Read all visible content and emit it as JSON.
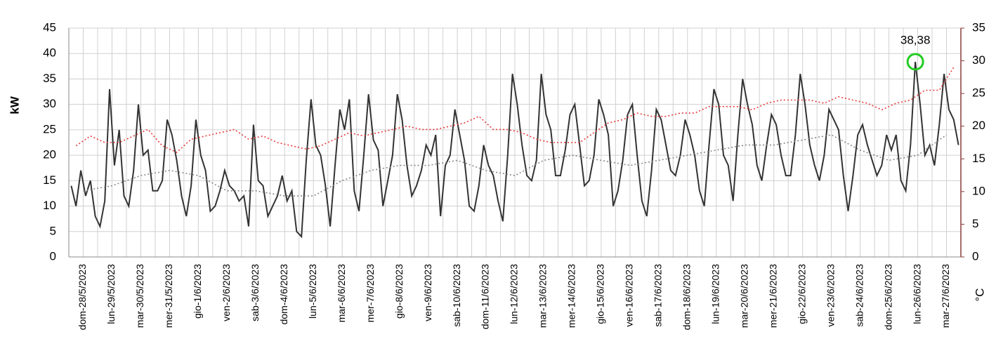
{
  "chart_data": {
    "type": "line",
    "y_label": "kW",
    "y2_label": "°C",
    "y2_color": "#8b3a3a",
    "categories": [
      "dom-28/5/2023",
      "lun-29/5/2023",
      "mar-30/5/2023",
      "mer-31/5/2023",
      "gio-1/6/2023",
      "ven-2/6/2023",
      "sab-3/6/2023",
      "dom-4/6/2023",
      "lun-5/6/2023",
      "mar-6/6/2023",
      "mer-7/6/2023",
      "gio-8/6/2023",
      "ven-9/6/2023",
      "sab-10/6/2023",
      "dom-11/6/2023",
      "lun-12/6/2023",
      "mar-13/6/2023",
      "mer-14/6/2023",
      "gio-15/6/2023",
      "ven-16/6/2023",
      "sab-17/6/2023",
      "dom-18/6/2023",
      "lun-19/6/2023",
      "mar-20/6/2023",
      "mer-21/6/2023",
      "gio-22/6/2023",
      "ven-23/6/2023",
      "sab-24/6/2023",
      "dom-25/6/2023",
      "lun-26/6/2023",
      "mar-27/6/2023"
    ],
    "series": [
      {
        "color": "#333333",
        "dash": "solid",
        "axis": "y",
        "values": [
          [
            14,
            10,
            17,
            12,
            15,
            8
          ],
          [
            6,
            11,
            33,
            18,
            25,
            12
          ],
          [
            10,
            17,
            30,
            20,
            21,
            13
          ],
          [
            13,
            15,
            27,
            24,
            19,
            12
          ],
          [
            8,
            14,
            27,
            20,
            17,
            9
          ],
          [
            10,
            13,
            17,
            14,
            13,
            11
          ],
          [
            12,
            6,
            26,
            15,
            14,
            8
          ],
          [
            10,
            12,
            16,
            11,
            13,
            5
          ],
          [
            4,
            19,
            31,
            22,
            20,
            14
          ],
          [
            6,
            18,
            29,
            25,
            31,
            13
          ],
          [
            9,
            20,
            32,
            23,
            21,
            10
          ],
          [
            15,
            20,
            32,
            27,
            18,
            12
          ],
          [
            14,
            17,
            22,
            20,
            24,
            8
          ],
          [
            18,
            20,
            29,
            24,
            19,
            10
          ],
          [
            9,
            14,
            22,
            18,
            16,
            11
          ],
          [
            7,
            20,
            36,
            30,
            22,
            16
          ],
          [
            15,
            19,
            36,
            28,
            25,
            16
          ],
          [
            16,
            21,
            28,
            30,
            22,
            14
          ],
          [
            15,
            20,
            31,
            28,
            24,
            10
          ],
          [
            13,
            19,
            28,
            30,
            20,
            11
          ],
          [
            8,
            17,
            29,
            27,
            22,
            17
          ],
          [
            16,
            20,
            27,
            24,
            20,
            13
          ],
          [
            10,
            22,
            33,
            30,
            20,
            18
          ],
          [
            11,
            24,
            35,
            30,
            26,
            18
          ],
          [
            15,
            22,
            28,
            26,
            20,
            16
          ],
          [
            16,
            24,
            36,
            30,
            22,
            18
          ],
          [
            15,
            20,
            29,
            27,
            25,
            16
          ],
          [
            9,
            16,
            24,
            26,
            22,
            19
          ],
          [
            16,
            18,
            24,
            21,
            24,
            15
          ],
          [
            13,
            22,
            38.38,
            30,
            20,
            22
          ],
          [
            18,
            26,
            36,
            29,
            27,
            22
          ]
        ]
      },
      {
        "color": "#888888",
        "dash": "dotted",
        "axis": "y",
        "values": [
          [
            13
          ],
          [
            14
          ],
          [
            16
          ],
          [
            17
          ],
          [
            16
          ],
          [
            13
          ],
          [
            13
          ],
          [
            12
          ],
          [
            12
          ],
          [
            15
          ],
          [
            17
          ],
          [
            18
          ],
          [
            18
          ],
          [
            19
          ],
          [
            17
          ],
          [
            16
          ],
          [
            19
          ],
          [
            20
          ],
          [
            19
          ],
          [
            18
          ],
          [
            19
          ],
          [
            20
          ],
          [
            21
          ],
          [
            22
          ],
          [
            22
          ],
          [
            23
          ],
          [
            24
          ],
          [
            21
          ],
          [
            19
          ],
          [
            20
          ],
          [
            24
          ]
        ]
      },
      {
        "color": "#e83a3a",
        "dash": "dotted",
        "axis": "y2",
        "values": [
          [
            17,
            18.5
          ],
          [
            17.5,
            17.5
          ],
          [
            18.5,
            19.5
          ],
          [
            17,
            16
          ],
          [
            18,
            18.5
          ],
          [
            19,
            19.5
          ],
          [
            18,
            18.5
          ],
          [
            17.5,
            17
          ],
          [
            16.5,
            17
          ],
          [
            18,
            19
          ],
          [
            18.5,
            19
          ],
          [
            19.5,
            20
          ],
          [
            19.5,
            19.5
          ],
          [
            20,
            20.5
          ],
          [
            21.5,
            19.5
          ],
          [
            19.5,
            19
          ],
          [
            18,
            17.5
          ],
          [
            17.5,
            17.5
          ],
          [
            19,
            20.5
          ],
          [
            21,
            22
          ],
          [
            21.5,
            21.5
          ],
          [
            22,
            22
          ],
          [
            23,
            23
          ],
          [
            23,
            22.5
          ],
          [
            23.5,
            24
          ],
          [
            24,
            24
          ],
          [
            23.5,
            24.5
          ],
          [
            24,
            23.5
          ],
          [
            22.5,
            23.5
          ],
          [
            24,
            25.5
          ],
          [
            25.5,
            29
          ]
        ]
      }
    ],
    "annotation": {
      "label": "38,38",
      "value": 38.38,
      "color": "#22cc22"
    },
    "ylim": [
      0,
      45
    ],
    "yticks": [
      0,
      5,
      10,
      15,
      20,
      25,
      30,
      35,
      40,
      45
    ],
    "y2lim": [
      0,
      35
    ],
    "y2ticks": [
      0,
      5,
      10,
      15,
      20,
      25,
      30,
      35
    ],
    "grid": true
  }
}
